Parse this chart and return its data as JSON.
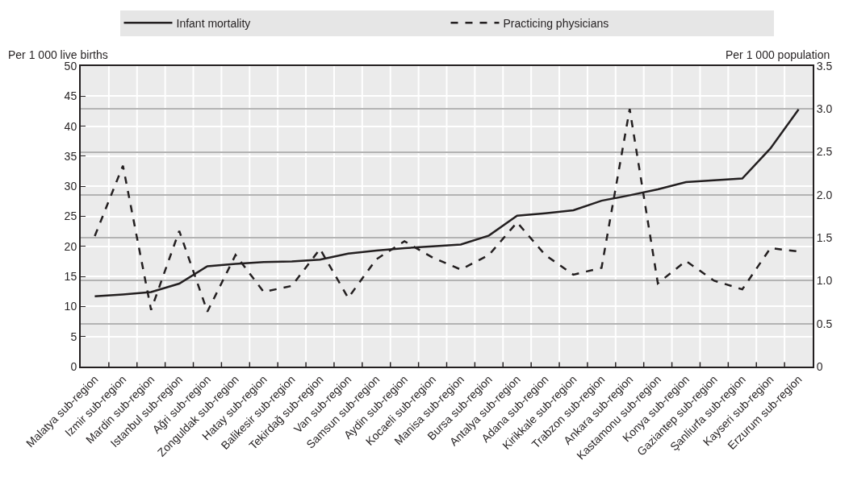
{
  "chart_data": {
    "type": "line",
    "ylabel": "Per 1 000 live births",
    "y2label": "Per 1 000 population",
    "categories": [
      "Malatya sub-region",
      "Izmir sub-region",
      "Mardin sub-region",
      "Istanbul sub-region",
      "Ağri sub-region",
      "Zonguldak sub-region",
      "Hatay sub-region",
      "Balikesir sub-region",
      "Tekirdağ sub-region",
      "Van sub-region",
      "Samsun sub-region",
      "Aydin sub-region",
      "Kocaeli sub-region",
      "Manisa sub-region",
      "Bursa sub-region",
      "Antalya sub-region",
      "Adana sub-region",
      "Kirikkale sub-region",
      "Trabzon sub-region",
      "Ankara sub-region",
      "Kastamonu sub-region",
      "Konya sub-region",
      "Gaziantep sub-region",
      "Şanliurfa sub-region",
      "Kayseri sub-region",
      "Erzurum sub-region"
    ],
    "series": [
      {
        "name": "Infant mortality",
        "color": "#231f20",
        "line_style": "solid",
        "values": [
          11.7,
          12.0,
          12.4,
          13.8,
          16.7,
          17.1,
          17.4,
          17.5,
          17.8,
          18.8,
          19.3,
          19.7,
          20.0,
          20.3,
          21.8,
          25.1,
          25.5,
          26.0,
          27.6,
          28.5,
          29.5,
          30.7,
          31.0,
          31.3,
          36.3,
          42.8
        ]
      },
      {
        "name": "Practicing physicians",
        "color": "#231f20",
        "line_style": "dashed",
        "axis": "y2",
        "values": [
          1.52,
          2.34,
          0.66,
          1.58,
          0.64,
          1.3,
          0.87,
          0.94,
          1.37,
          0.8,
          1.25,
          1.46,
          1.27,
          1.13,
          1.3,
          1.68,
          1.3,
          1.07,
          1.15,
          3.0,
          0.97,
          1.23,
          1.0,
          0.9,
          1.38,
          1.34
        ]
      }
    ],
    "ylim": [
      0,
      50
    ],
    "yticks": [
      0,
      5,
      10,
      15,
      20,
      25,
      30,
      35,
      40,
      45,
      50
    ],
    "y2lim": [
      0,
      3.5
    ],
    "y2ticks": [
      0,
      {
        "value": 0.5,
        "label": "0.5"
      },
      {
        "value": 1,
        "label": "1.0"
      },
      {
        "value": 1.5,
        "label": "1.5"
      },
      {
        "value": 2,
        "label": "2.0"
      },
      {
        "value": 2.5,
        "label": "2.5"
      },
      {
        "value": 3,
        "label": "3.0"
      },
      {
        "value": 3.5,
        "label": "3.5"
      }
    ],
    "grid": true,
    "legend": "top",
    "marker": "none"
  }
}
